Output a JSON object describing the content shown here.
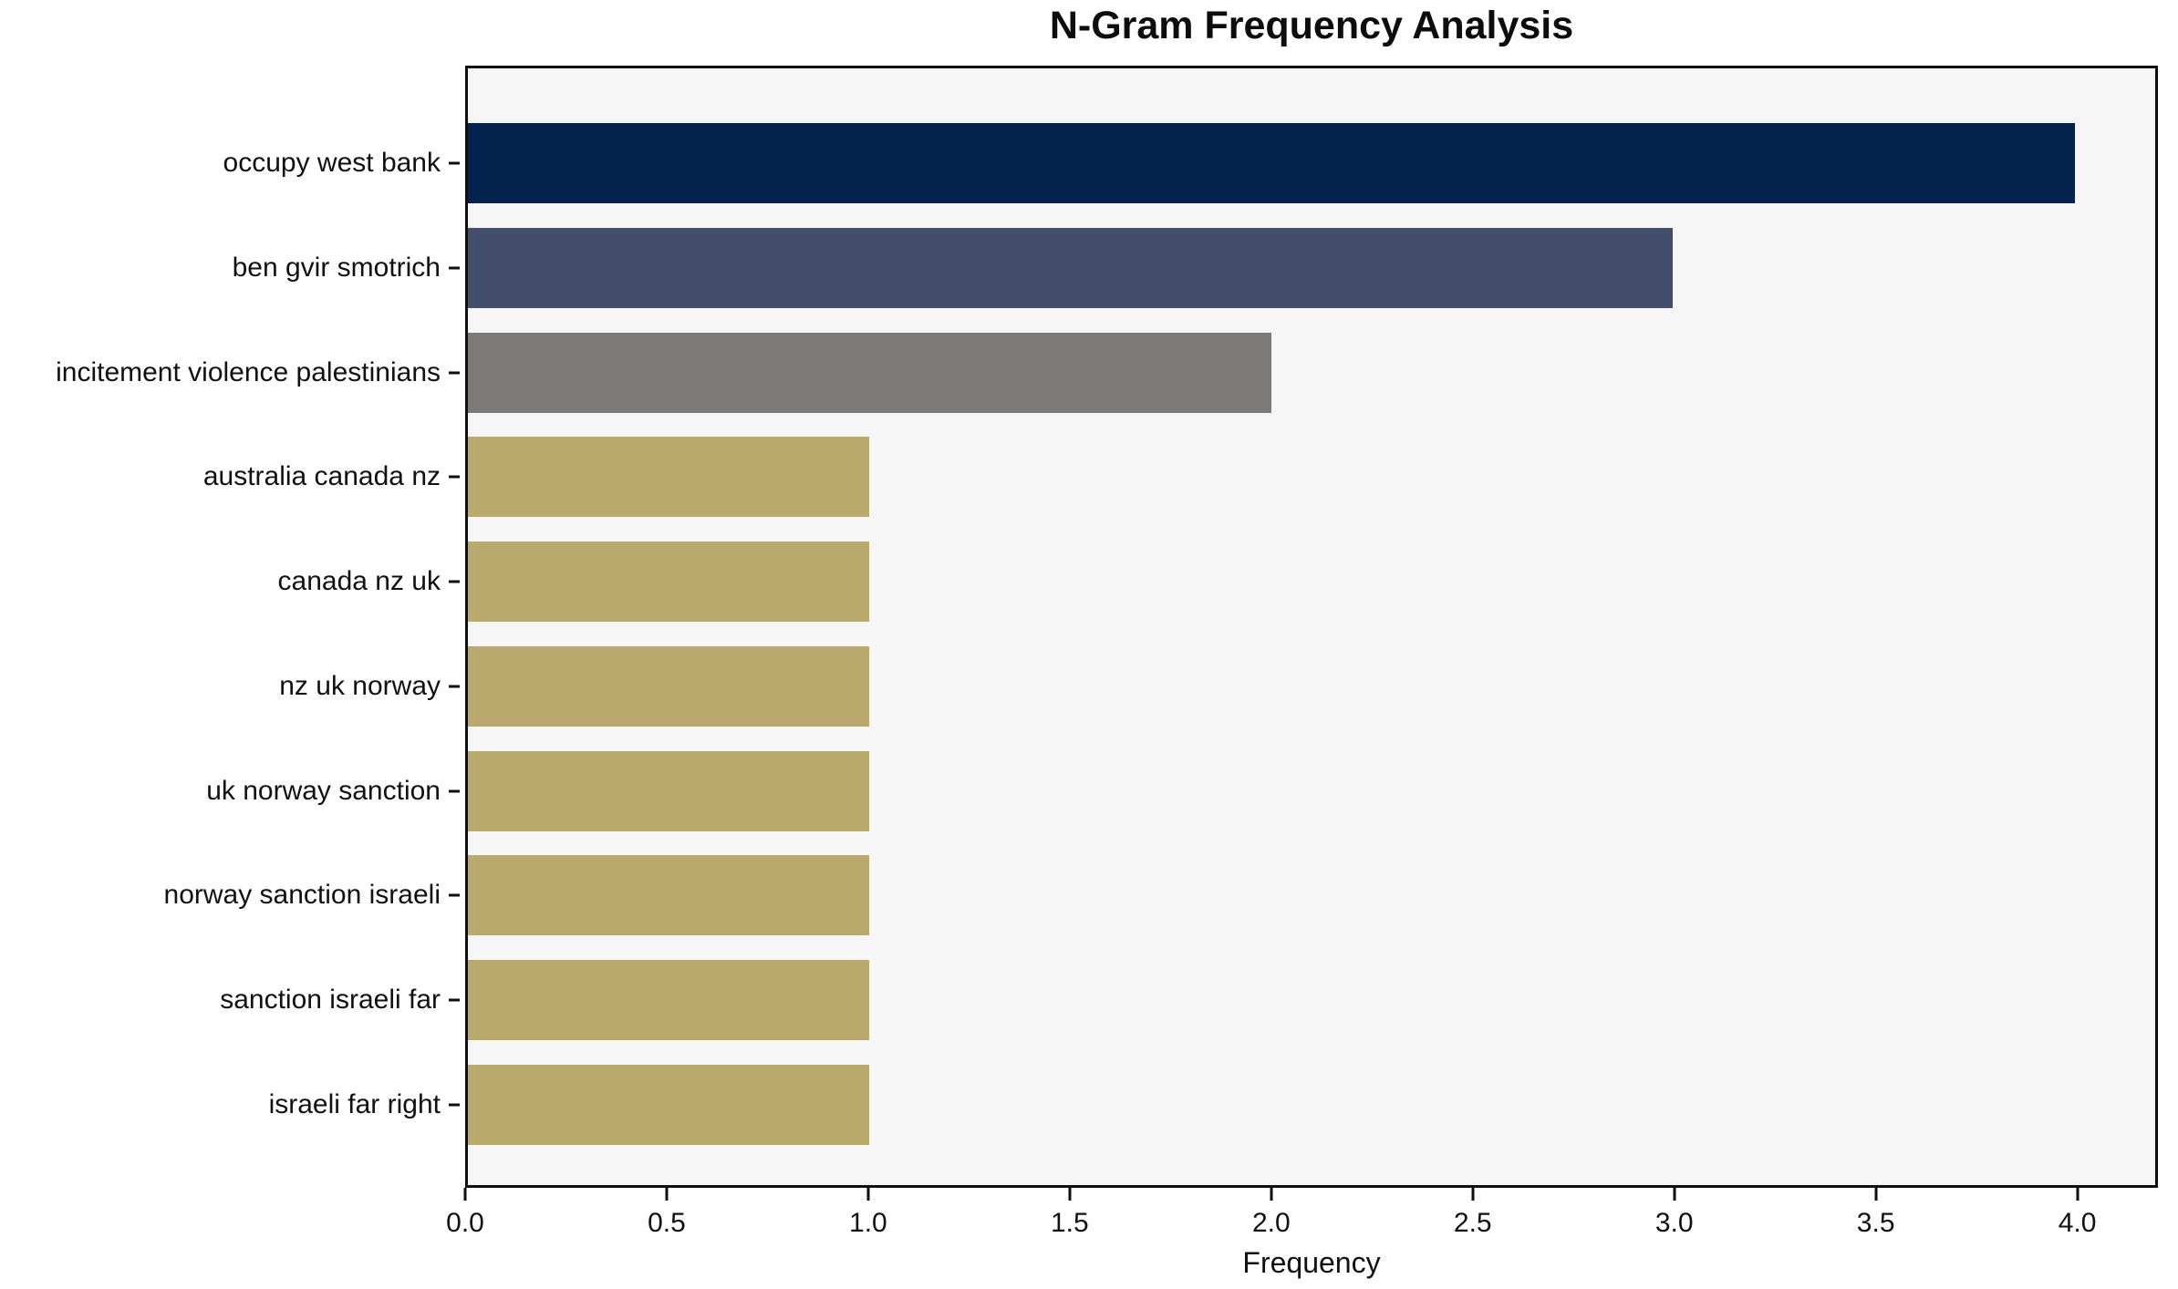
{
  "chart_data": {
    "type": "bar",
    "orientation": "horizontal",
    "title": "N-Gram Frequency Analysis",
    "xlabel": "Frequency",
    "ylabel": "",
    "grid": false,
    "legend": "none",
    "xlim": [
      0,
      4.2
    ],
    "xticks": [
      {
        "value": 0.0,
        "label": "0.0"
      },
      {
        "value": 0.5,
        "label": "0.5"
      },
      {
        "value": 1.0,
        "label": "1.0"
      },
      {
        "value": 1.5,
        "label": "1.5"
      },
      {
        "value": 2.0,
        "label": "2.0"
      },
      {
        "value": 2.5,
        "label": "2.5"
      },
      {
        "value": 3.0,
        "label": "3.0"
      },
      {
        "value": 3.5,
        "label": "3.5"
      },
      {
        "value": 4.0,
        "label": "4.0"
      }
    ],
    "categories": [
      "occupy west bank",
      "ben gvir smotrich",
      "incitement violence palestinians",
      "australia canada nz",
      "canada nz uk",
      "nz uk norway",
      "uk norway sanction",
      "norway sanction israeli",
      "sanction israeli far",
      "israeli far right"
    ],
    "values": [
      4,
      3,
      2,
      1,
      1,
      1,
      1,
      1,
      1,
      1
    ],
    "bar_colors": [
      "#03234e",
      "#424e6c",
      "#7b7a76",
      "#b9a96c",
      "#b9a96c",
      "#b9a96c",
      "#b9a96c",
      "#b9a96c",
      "#b9a96c",
      "#b9a96c"
    ]
  },
  "colors": {
    "figure_bg": "#ffffff",
    "plot_bg": "#f6f6f6",
    "spine": "#0f0f0f",
    "text": "#111111"
  }
}
